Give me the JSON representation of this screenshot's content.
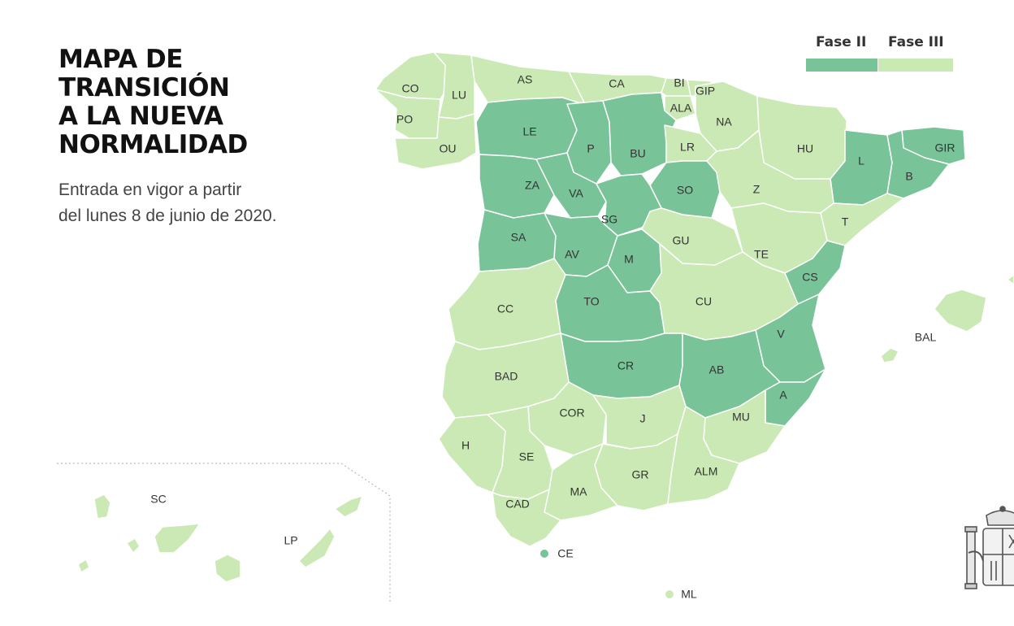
{
  "title": [
    "MAPA DE",
    "TRANSICIÓN",
    "A LA NUEVA",
    "NORMALIDAD"
  ],
  "subtitle": [
    "Entrada en vigor a partir",
    "del lunes 8 de junio de 2020."
  ],
  "legend": [
    {
      "label": "Fase II",
      "color": "#79c399"
    },
    {
      "label": "Fase III",
      "color": "#cbe9b5"
    }
  ],
  "colors": {
    "fase_2": "#79c399",
    "fase_3": "#cbe9b5",
    "border": "#ffffff"
  },
  "provinces": [
    {
      "code": "CO",
      "phase": "III"
    },
    {
      "code": "LU",
      "phase": "III"
    },
    {
      "code": "AS",
      "phase": "III"
    },
    {
      "code": "CA",
      "phase": "III"
    },
    {
      "code": "BI",
      "phase": "III"
    },
    {
      "code": "GIP",
      "phase": "III"
    },
    {
      "code": "ALA",
      "phase": "III"
    },
    {
      "code": "NA",
      "phase": "III"
    },
    {
      "code": "PO",
      "phase": "III"
    },
    {
      "code": "OU",
      "phase": "III"
    },
    {
      "code": "LE",
      "phase": "II"
    },
    {
      "code": "P",
      "phase": "II"
    },
    {
      "code": "BU",
      "phase": "II"
    },
    {
      "code": "LR",
      "phase": "III"
    },
    {
      "code": "HU",
      "phase": "III"
    },
    {
      "code": "L",
      "phase": "II"
    },
    {
      "code": "GIR",
      "phase": "II"
    },
    {
      "code": "B",
      "phase": "II"
    },
    {
      "code": "ZA",
      "phase": "II"
    },
    {
      "code": "VA",
      "phase": "II"
    },
    {
      "code": "SO",
      "phase": "II"
    },
    {
      "code": "Z",
      "phase": "III"
    },
    {
      "code": "T",
      "phase": "III"
    },
    {
      "code": "SG",
      "phase": "II"
    },
    {
      "code": "SA",
      "phase": "II"
    },
    {
      "code": "GU",
      "phase": "III"
    },
    {
      "code": "AV",
      "phase": "II"
    },
    {
      "code": "M",
      "phase": "II"
    },
    {
      "code": "TE",
      "phase": "III"
    },
    {
      "code": "CS",
      "phase": "II"
    },
    {
      "code": "CC",
      "phase": "III"
    },
    {
      "code": "TO",
      "phase": "II"
    },
    {
      "code": "CU",
      "phase": "III"
    },
    {
      "code": "V",
      "phase": "II"
    },
    {
      "code": "BAL",
      "phase": "III"
    },
    {
      "code": "BAD",
      "phase": "III"
    },
    {
      "code": "CR",
      "phase": "II"
    },
    {
      "code": "AB",
      "phase": "II"
    },
    {
      "code": "A",
      "phase": "II"
    },
    {
      "code": "COR",
      "phase": "III"
    },
    {
      "code": "J",
      "phase": "III"
    },
    {
      "code": "MU",
      "phase": "III"
    },
    {
      "code": "H",
      "phase": "III"
    },
    {
      "code": "SE",
      "phase": "III"
    },
    {
      "code": "GR",
      "phase": "III"
    },
    {
      "code": "ALM",
      "phase": "III"
    },
    {
      "code": "MA",
      "phase": "III"
    },
    {
      "code": "CAD",
      "phase": "III"
    },
    {
      "code": "SC",
      "phase": "III"
    },
    {
      "code": "LP",
      "phase": "III"
    },
    {
      "code": "CE",
      "phase": "II"
    },
    {
      "code": "ML",
      "phase": "III"
    }
  ]
}
